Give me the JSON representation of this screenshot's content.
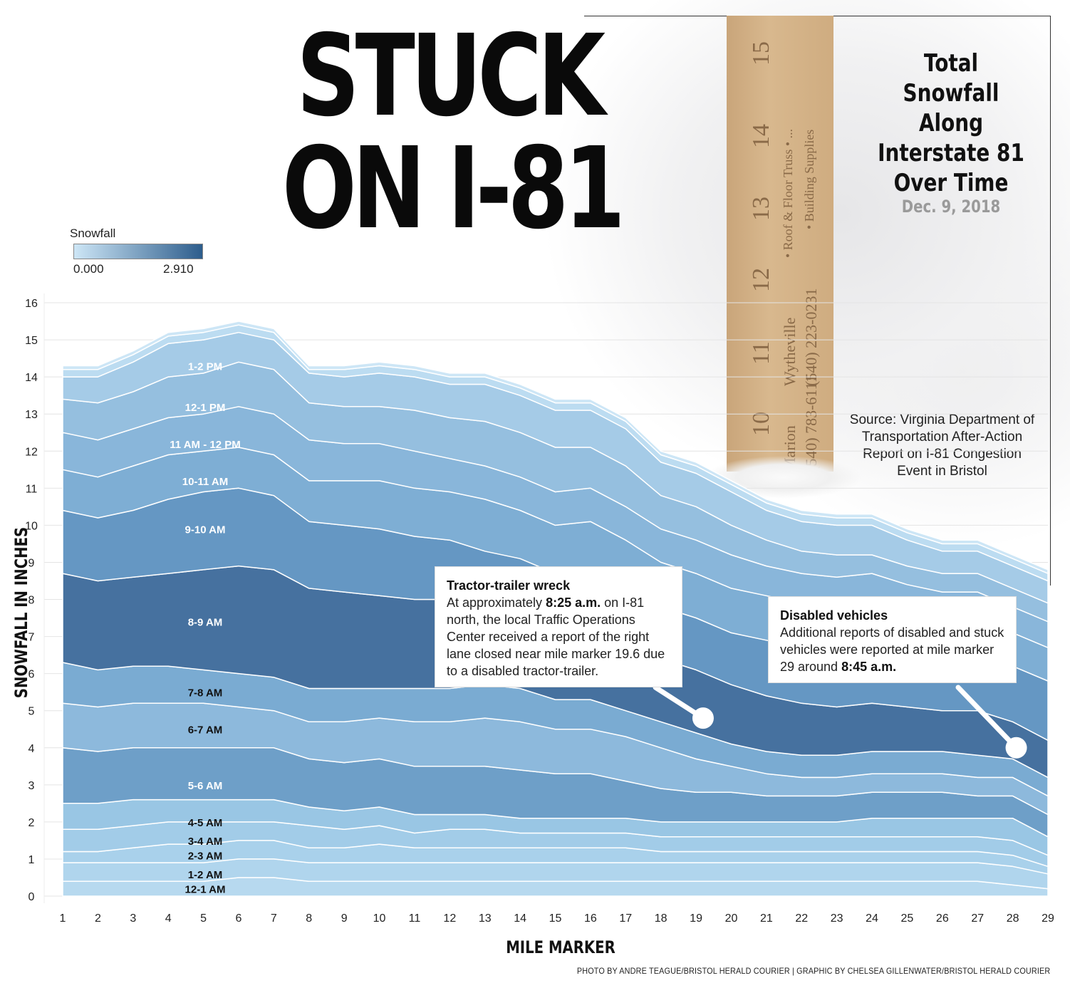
{
  "headline": {
    "line1": "STUCK",
    "line2": "ON I-81"
  },
  "side_title": {
    "lines": [
      "Total",
      "Snowfall",
      "Along",
      "Interstate 81",
      "Over Time"
    ],
    "date": "Dec. 9, 2018"
  },
  "source": "Source: Virginia Department of Transportation After-Action Report on I-81 Congestion Event in Bristol",
  "legend": {
    "title": "Snowfall",
    "min": "0.000",
    "max": "2.910",
    "color_low": "#cde6f6",
    "color_high": "#2d5d8c"
  },
  "photo": {
    "ruler_numbers": [
      "10",
      "11",
      "12",
      "13",
      "14",
      "15"
    ],
    "ruler_text": [
      "Wytheville",
      "(540) 223-0231",
      "Marion",
      "(540) 783-6111",
      "• Roof & Floor Truss • ...",
      "• Building Supplies"
    ]
  },
  "annotations": [
    {
      "title": "Tractor-trailer wreck",
      "text_before": "At approximately ",
      "bold": "8:25 a.m.",
      "text_after": " on I-81 north, the local Traffic Operations Center received a report of the right lane closed near mile marker 19.6 due to a disabled tractor-trailer.",
      "marker_x": 19.2,
      "marker_y": 4.8
    },
    {
      "title": "Disabled vehicles",
      "text_before": "Additional reports of disabled and stuck vehicles were reported at mile marker 29 around ",
      "bold": "8:45 a.m.",
      "text_after": "",
      "marker_x": 28.1,
      "marker_y": 4.0
    }
  ],
  "credit": "PHOTO BY ANDRE TEAGUE/BRISTOL HERALD COURIER | GRAPHIC BY CHELSEA GILLENWATER/BRISTOL HERALD COURIER",
  "chart_data": {
    "type": "area",
    "stacked": true,
    "xlabel": "MILE MARKER",
    "ylabel": "SNOWFALL IN INCHES",
    "xlim": [
      1,
      29
    ],
    "ylim": [
      0,
      16
    ],
    "x": [
      1,
      2,
      3,
      4,
      5,
      6,
      7,
      8,
      9,
      10,
      11,
      12,
      13,
      14,
      15,
      16,
      17,
      18,
      19,
      20,
      21,
      22,
      23,
      24,
      25,
      26,
      27,
      28,
      29
    ],
    "x_ticks": [
      1,
      2,
      3,
      4,
      5,
      6,
      7,
      8,
      9,
      10,
      11,
      12,
      13,
      14,
      15,
      16,
      17,
      18,
      19,
      20,
      21,
      22,
      23,
      24,
      25,
      26,
      27,
      28,
      29
    ],
    "y_ticks": [
      0,
      1,
      2,
      3,
      4,
      5,
      6,
      7,
      8,
      9,
      10,
      11,
      12,
      13,
      14,
      15,
      16
    ],
    "series": [
      {
        "name": "12-1 AM",
        "label_y": 0.2,
        "color": "#b7d9ef",
        "values": [
          0.4,
          0.4,
          0.4,
          0.4,
          0.4,
          0.5,
          0.5,
          0.4,
          0.4,
          0.4,
          0.4,
          0.4,
          0.4,
          0.4,
          0.4,
          0.4,
          0.4,
          0.4,
          0.4,
          0.4,
          0.4,
          0.4,
          0.4,
          0.4,
          0.4,
          0.4,
          0.4,
          0.3,
          0.2
        ]
      },
      {
        "name": "1-2 AM",
        "label_y": 0.6,
        "color": "#b0d5ed",
        "values": [
          0.5,
          0.5,
          0.5,
          0.5,
          0.5,
          0.5,
          0.5,
          0.5,
          0.5,
          0.5,
          0.5,
          0.5,
          0.5,
          0.5,
          0.5,
          0.5,
          0.5,
          0.5,
          0.5,
          0.5,
          0.5,
          0.5,
          0.5,
          0.5,
          0.5,
          0.5,
          0.5,
          0.5,
          0.4
        ]
      },
      {
        "name": "2-3 AM",
        "label_y": 1.1,
        "color": "#a9d1eb",
        "values": [
          0.3,
          0.3,
          0.4,
          0.5,
          0.5,
          0.5,
          0.5,
          0.4,
          0.4,
          0.5,
          0.4,
          0.4,
          0.4,
          0.4,
          0.4,
          0.4,
          0.4,
          0.3,
          0.3,
          0.3,
          0.3,
          0.3,
          0.3,
          0.3,
          0.3,
          0.3,
          0.3,
          0.3,
          0.2
        ]
      },
      {
        "name": "3-4 AM",
        "label_y": 1.5,
        "color": "#a2cce8",
        "values": [
          0.6,
          0.6,
          0.6,
          0.6,
          0.6,
          0.5,
          0.5,
          0.6,
          0.5,
          0.5,
          0.4,
          0.5,
          0.5,
          0.4,
          0.4,
          0.4,
          0.4,
          0.4,
          0.4,
          0.4,
          0.4,
          0.4,
          0.4,
          0.4,
          0.4,
          0.4,
          0.4,
          0.4,
          0.3
        ]
      },
      {
        "name": "4-5 AM",
        "label_y": 2.0,
        "color": "#99c6e4",
        "values": [
          0.7,
          0.7,
          0.7,
          0.6,
          0.6,
          0.6,
          0.6,
          0.5,
          0.5,
          0.5,
          0.5,
          0.4,
          0.4,
          0.4,
          0.4,
          0.4,
          0.4,
          0.4,
          0.4,
          0.4,
          0.4,
          0.4,
          0.4,
          0.5,
          0.5,
          0.5,
          0.5,
          0.6,
          0.5
        ]
      },
      {
        "name": "5-6 AM",
        "label_y": 3.0,
        "color": "#6e9fc8",
        "values": [
          1.5,
          1.4,
          1.4,
          1.4,
          1.4,
          1.4,
          1.4,
          1.3,
          1.3,
          1.3,
          1.3,
          1.3,
          1.3,
          1.3,
          1.2,
          1.2,
          1.0,
          0.9,
          0.8,
          0.8,
          0.7,
          0.7,
          0.7,
          0.7,
          0.7,
          0.7,
          0.6,
          0.6,
          0.6
        ]
      },
      {
        "name": "6-7 AM",
        "label_y": 4.5,
        "color": "#8db9dc",
        "values": [
          1.2,
          1.2,
          1.2,
          1.2,
          1.2,
          1.1,
          1.0,
          1.0,
          1.1,
          1.1,
          1.2,
          1.2,
          1.3,
          1.3,
          1.2,
          1.2,
          1.2,
          1.1,
          0.9,
          0.7,
          0.6,
          0.5,
          0.5,
          0.5,
          0.5,
          0.5,
          0.5,
          0.5,
          0.5
        ]
      },
      {
        "name": "7-8 AM",
        "label_y": 5.5,
        "color": "#7aabd2",
        "values": [
          1.1,
          1.0,
          1.0,
          1.0,
          0.9,
          0.9,
          0.9,
          0.9,
          0.9,
          0.8,
          0.9,
          0.9,
          0.9,
          0.9,
          0.8,
          0.8,
          0.7,
          0.7,
          0.7,
          0.6,
          0.6,
          0.6,
          0.6,
          0.6,
          0.6,
          0.6,
          0.6,
          0.5,
          0.5
        ]
      },
      {
        "name": "8-9 AM",
        "label_y": 7.4,
        "color": "#46719f",
        "values": [
          2.4,
          2.4,
          2.4,
          2.5,
          2.7,
          2.9,
          2.9,
          2.7,
          2.6,
          2.5,
          2.4,
          2.4,
          2.0,
          1.9,
          1.8,
          1.9,
          1.8,
          1.7,
          1.7,
          1.6,
          1.5,
          1.4,
          1.3,
          1.3,
          1.2,
          1.1,
          1.2,
          1.0,
          1.0
        ]
      },
      {
        "name": "9-10 AM",
        "label_y": 9.9,
        "color": "#6597c3",
        "values": [
          1.7,
          1.7,
          1.8,
          2.0,
          2.1,
          2.1,
          2.0,
          1.8,
          1.8,
          1.8,
          1.7,
          1.6,
          1.6,
          1.6,
          1.6,
          1.6,
          1.5,
          1.4,
          1.4,
          1.4,
          1.5,
          1.5,
          1.5,
          1.5,
          1.5,
          1.5,
          1.5,
          1.5,
          1.6
        ]
      },
      {
        "name": "10-11 AM",
        "label_y": 11.2,
        "color": "#7eaed4",
        "values": [
          1.1,
          1.1,
          1.2,
          1.2,
          1.1,
          1.1,
          1.1,
          1.1,
          1.2,
          1.3,
          1.3,
          1.3,
          1.4,
          1.3,
          1.3,
          1.3,
          1.3,
          1.2,
          1.2,
          1.2,
          1.2,
          1.2,
          1.2,
          1.2,
          1.0,
          0.9,
          0.9,
          0.9,
          0.9
        ]
      },
      {
        "name": "11 AM - 12 PM",
        "label_y": 12.2,
        "color": "#89b6da",
        "values": [
          1.0,
          1.0,
          1.0,
          1.0,
          1.0,
          1.1,
          1.1,
          1.1,
          1.0,
          1.0,
          1.0,
          0.9,
          0.9,
          0.9,
          0.9,
          0.9,
          0.9,
          0.9,
          0.9,
          0.9,
          0.8,
          0.8,
          0.8,
          0.8,
          0.8,
          0.8,
          0.8,
          0.7,
          0.7
        ]
      },
      {
        "name": "12-1 PM",
        "label_y": 13.2,
        "color": "#95bfdf",
        "values": [
          0.9,
          1.0,
          1.0,
          1.1,
          1.1,
          1.2,
          1.2,
          1.0,
          1.0,
          1.0,
          1.1,
          1.1,
          1.2,
          1.2,
          1.2,
          1.1,
          1.1,
          0.9,
          0.9,
          0.8,
          0.7,
          0.6,
          0.6,
          0.5,
          0.5,
          0.5,
          0.5,
          0.5,
          0.5
        ]
      },
      {
        "name": "1-2 PM",
        "label_y": 14.3,
        "color": "#a5cbe7",
        "values": [
          0.6,
          0.7,
          0.8,
          0.9,
          0.9,
          0.8,
          0.8,
          0.8,
          0.8,
          0.9,
          0.9,
          0.9,
          1.0,
          1.0,
          1.0,
          1.0,
          1.0,
          0.9,
          0.9,
          0.9,
          0.8,
          0.8,
          0.8,
          0.8,
          0.7,
          0.6,
          0.6,
          0.6,
          0.6
        ]
      },
      {
        "name": "",
        "label_y": 0,
        "color": "#bcdcf1",
        "values": [
          0.2,
          0.2,
          0.2,
          0.2,
          0.2,
          0.2,
          0.2,
          0.1,
          0.2,
          0.2,
          0.2,
          0.2,
          0.2,
          0.2,
          0.2,
          0.2,
          0.2,
          0.2,
          0.2,
          0.2,
          0.2,
          0.2,
          0.2,
          0.2,
          0.2,
          0.2,
          0.2,
          0.2,
          0.2
        ]
      },
      {
        "name": "",
        "label_y": 0,
        "color": "#cde6f6",
        "values": [
          0.1,
          0.1,
          0.1,
          0.1,
          0.1,
          0.1,
          0.1,
          0.1,
          0.1,
          0.1,
          0.1,
          0.1,
          0.1,
          0.1,
          0.1,
          0.1,
          0.1,
          0.1,
          0.1,
          0.1,
          0.1,
          0.1,
          0.1,
          0.1,
          0.1,
          0.1,
          0.1,
          0.1,
          0.1
        ]
      }
    ]
  }
}
